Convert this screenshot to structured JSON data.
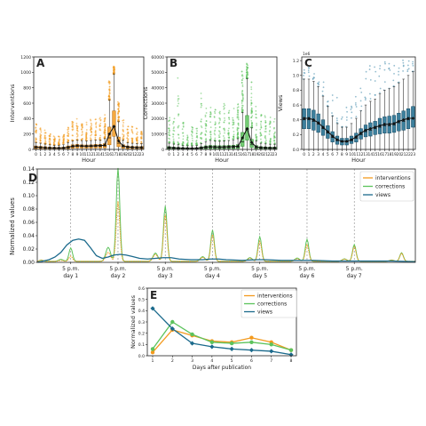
{
  "colors": {
    "interventions": "#f39a1e",
    "corrections": "#5cc35c",
    "views": "#1b6a8c",
    "axis": "#222222",
    "grid_dash": "#888888"
  },
  "chart_data": [
    {
      "panel": "A",
      "type": "box",
      "xlabel": "Hour",
      "ylabel": "Interventions",
      "categories": [
        "0",
        "1",
        "2",
        "3",
        "4",
        "5",
        "6",
        "7",
        "8",
        "9",
        "10",
        "11",
        "12",
        "13",
        "14",
        "15",
        "16",
        "17",
        "18",
        "19",
        "20",
        "21",
        "22",
        "23"
      ],
      "y_ticks": [
        "0",
        "200",
        "400",
        "600",
        "800",
        "1000",
        "1200"
      ],
      "ylim": [
        0,
        1200
      ],
      "median": [
        25,
        22,
        20,
        18,
        17,
        16,
        17,
        25,
        35,
        40,
        38,
        36,
        38,
        40,
        40,
        45,
        150,
        290,
        80,
        35,
        25,
        22,
        20,
        20
      ],
      "q1": [
        10,
        10,
        9,
        8,
        8,
        7,
        8,
        10,
        15,
        18,
        17,
        16,
        17,
        18,
        18,
        20,
        60,
        170,
        35,
        15,
        10,
        10,
        9,
        9
      ],
      "q3": [
        45,
        40,
        35,
        30,
        28,
        27,
        30,
        45,
        60,
        65,
        60,
        58,
        60,
        65,
        65,
        75,
        290,
        500,
        160,
        60,
        45,
        40,
        38,
        38
      ],
      "mean": [
        30,
        26,
        22,
        20,
        19,
        18,
        20,
        28,
        42,
        48,
        45,
        43,
        45,
        48,
        50,
        55,
        200,
        300,
        110,
        45,
        32,
        28,
        25,
        25
      ],
      "whisker_high": [
        90,
        80,
        70,
        60,
        55,
        55,
        60,
        90,
        110,
        120,
        115,
        110,
        115,
        120,
        120,
        140,
        640,
        980,
        360,
        120,
        90,
        80,
        75,
        75
      ],
      "flier_max": [
        360,
        300,
        250,
        200,
        180,
        170,
        200,
        300,
        380,
        400,
        390,
        380,
        390,
        400,
        420,
        450,
        900,
        1080,
        640,
        400,
        320,
        300,
        280,
        260
      ]
    },
    {
      "panel": "B",
      "type": "box",
      "xlabel": "Hour",
      "ylabel": "Corrections",
      "categories": [
        "0",
        "1",
        "2",
        "3",
        "4",
        "5",
        "6",
        "7",
        "8",
        "9",
        "10",
        "11",
        "12",
        "13",
        "14",
        "15",
        "16",
        "17",
        "18",
        "19",
        "20",
        "21",
        "22",
        "23"
      ],
      "y_ticks": [
        "0",
        "10000",
        "20000",
        "30000",
        "40000",
        "50000",
        "60000"
      ],
      "ylim": [
        0,
        60000
      ],
      "median": [
        800,
        700,
        600,
        500,
        500,
        450,
        500,
        700,
        1000,
        1200,
        1100,
        1050,
        1100,
        1200,
        1250,
        1400,
        5000,
        13000,
        3000,
        1100,
        800,
        700,
        650,
        650
      ],
      "q1": [
        300,
        250,
        200,
        200,
        180,
        170,
        200,
        300,
        400,
        500,
        450,
        430,
        450,
        500,
        520,
        600,
        2000,
        6000,
        1200,
        450,
        300,
        280,
        260,
        250
      ],
      "q3": [
        1800,
        1500,
        1300,
        1100,
        1000,
        950,
        1100,
        1700,
        2300,
        2600,
        2500,
        2400,
        2500,
        2600,
        2700,
        3100,
        11000,
        22000,
        6500,
        2500,
        1800,
        1600,
        1500,
        1500
      ],
      "mean": [
        1200,
        1000,
        900,
        800,
        750,
        700,
        800,
        1100,
        1500,
        1700,
        1600,
        1550,
        1600,
        1700,
        1800,
        2000,
        7500,
        13500,
        4500,
        1600,
        1200,
        1100,
        1000,
        1000
      ],
      "whisker_high": [
        4000,
        3500,
        3000,
        2600,
        2400,
        2300,
        2600,
        3800,
        5000,
        5800,
        5500,
        5300,
        5500,
        5800,
        6000,
        7000,
        24000,
        46000,
        14000,
        5600,
        4000,
        3600,
        3400,
        3400
      ],
      "flier_max": [
        22000,
        20000,
        48000,
        18000,
        12000,
        15000,
        14000,
        40000,
        30000,
        28000,
        26000,
        25000,
        35000,
        26000,
        27000,
        30000,
        52000,
        56000,
        45000,
        28000,
        25000,
        22000,
        21000,
        20000
      ]
    },
    {
      "panel": "C",
      "type": "box",
      "xlabel": "Hour",
      "ylabel": "Views",
      "scale_label": "1e6",
      "categories": [
        "0",
        "1",
        "2",
        "3",
        "4",
        "5",
        "6",
        "7",
        "8",
        "9",
        "10",
        "11",
        "12",
        "13",
        "14",
        "15",
        "16",
        "17",
        "18",
        "19",
        "20",
        "21",
        "22",
        "23"
      ],
      "y_ticks": [
        "0.0",
        "0.2",
        "0.4",
        "0.6",
        "0.8",
        "1.0",
        "1.2"
      ],
      "ylim": [
        0,
        1.25
      ],
      "median": [
        0.4,
        0.4,
        0.38,
        0.34,
        0.28,
        0.22,
        0.16,
        0.12,
        0.1,
        0.1,
        0.12,
        0.15,
        0.2,
        0.24,
        0.26,
        0.28,
        0.3,
        0.32,
        0.32,
        0.33,
        0.36,
        0.38,
        0.4,
        0.42
      ],
      "q1": [
        0.28,
        0.28,
        0.26,
        0.23,
        0.19,
        0.15,
        0.1,
        0.07,
        0.06,
        0.06,
        0.08,
        0.1,
        0.14,
        0.17,
        0.18,
        0.2,
        0.21,
        0.22,
        0.22,
        0.23,
        0.25,
        0.26,
        0.28,
        0.3
      ],
      "q3": [
        0.55,
        0.55,
        0.53,
        0.48,
        0.4,
        0.32,
        0.24,
        0.18,
        0.15,
        0.15,
        0.18,
        0.22,
        0.28,
        0.33,
        0.36,
        0.38,
        0.42,
        0.44,
        0.45,
        0.46,
        0.49,
        0.52,
        0.55,
        0.58
      ],
      "mean": [
        0.42,
        0.42,
        0.4,
        0.36,
        0.3,
        0.24,
        0.18,
        0.13,
        0.11,
        0.11,
        0.13,
        0.17,
        0.22,
        0.26,
        0.28,
        0.3,
        0.32,
        0.34,
        0.34,
        0.35,
        0.38,
        0.4,
        0.42,
        0.42
      ],
      "whisker_high": [
        0.95,
        0.95,
        0.92,
        0.85,
        0.72,
        0.58,
        0.45,
        0.35,
        0.3,
        0.3,
        0.35,
        0.42,
        0.52,
        0.6,
        0.65,
        0.68,
        0.75,
        0.8,
        0.82,
        0.85,
        0.9,
        0.95,
        1.0,
        1.05
      ],
      "flier_max": [
        1.2,
        1.2,
        1.15,
        1.1,
        1.05,
        0.95,
        0.8,
        0.7,
        0.6,
        0.6,
        0.7,
        0.85,
        1.0,
        1.1,
        1.15,
        1.2,
        1.22,
        1.2,
        1.2,
        1.2,
        1.2,
        1.22,
        1.22,
        1.2
      ]
    },
    {
      "panel": "D",
      "type": "line",
      "ylabel": "Normalized values",
      "y_ticks": [
        "0.00",
        "0.02",
        "0.04",
        "0.06",
        "0.08",
        "0.10",
        "0.12",
        "0.14"
      ],
      "ylim": [
        0,
        0.14
      ],
      "xlim_hours": [
        0,
        192
      ],
      "x_tick_hours": [
        17,
        41,
        65,
        89,
        113,
        137,
        161
      ],
      "x_tick_labels": [
        [
          "5 p.m.",
          "day 1"
        ],
        [
          "5 p.m.",
          "day 2"
        ],
        [
          "5 p.m.",
          "day 3"
        ],
        [
          "5 p.m.",
          "day 4"
        ],
        [
          "5 p.m.",
          "day 5"
        ],
        [
          "5 p.m.",
          "day 6"
        ],
        [
          "5 p.m.",
          "day 7"
        ]
      ],
      "legend_position": "top-right",
      "series": [
        {
          "name": "interventions",
          "peaks": [
            [
              2,
              0.002
            ],
            [
              17,
              0.008
            ],
            [
              41,
              0.09
            ],
            [
              65,
              0.07
            ],
            [
              89,
              0.04
            ],
            [
              113,
              0.03
            ],
            [
              137,
              0.025
            ],
            [
              161,
              0.022
            ],
            [
              185,
              0.012
            ]
          ]
        },
        {
          "name": "corrections",
          "peaks": [
            [
              2,
              0.002
            ],
            [
              17,
              0.02
            ],
            [
              41,
              0.14
            ],
            [
              65,
              0.083
            ],
            [
              89,
              0.047
            ],
            [
              113,
              0.037
            ],
            [
              137,
              0.033
            ],
            [
              161,
              0.025
            ],
            [
              185,
              0.013
            ]
          ]
        },
        {
          "name": "views",
          "points": [
            [
              0,
              0.0
            ],
            [
              3,
              0.002
            ],
            [
              6,
              0.004
            ],
            [
              9,
              0.008
            ],
            [
              12,
              0.015
            ],
            [
              15,
              0.026
            ],
            [
              18,
              0.033
            ],
            [
              21,
              0.035
            ],
            [
              24,
              0.033
            ],
            [
              27,
              0.022
            ],
            [
              30,
              0.01
            ],
            [
              33,
              0.006
            ],
            [
              36,
              0.008
            ],
            [
              39,
              0.011
            ],
            [
              42,
              0.012
            ],
            [
              45,
              0.011
            ],
            [
              48,
              0.009
            ],
            [
              52,
              0.006
            ],
            [
              56,
              0.005
            ],
            [
              60,
              0.006
            ],
            [
              64,
              0.007
            ],
            [
              68,
              0.007
            ],
            [
              72,
              0.005
            ],
            [
              78,
              0.004
            ],
            [
              84,
              0.004
            ],
            [
              88,
              0.005
            ],
            [
              92,
              0.005
            ],
            [
              96,
              0.004
            ],
            [
              104,
              0.003
            ],
            [
              112,
              0.004
            ],
            [
              116,
              0.004
            ],
            [
              124,
              0.003
            ],
            [
              136,
              0.003
            ],
            [
              140,
              0.003
            ],
            [
              150,
              0.002
            ],
            [
              160,
              0.002
            ],
            [
              170,
              0.002
            ],
            [
              180,
              0.002
            ],
            [
              192,
              0.001
            ]
          ]
        }
      ]
    },
    {
      "panel": "E",
      "type": "line",
      "xlabel": "Days after publication",
      "ylabel": "Normalized values",
      "x": [
        1,
        2,
        3,
        4,
        5,
        6,
        7,
        8
      ],
      "y_ticks": [
        "0.0",
        "0.1",
        "0.2",
        "0.3",
        "0.4",
        "0.5",
        "0.6"
      ],
      "ylim": [
        0,
        0.6
      ],
      "legend_position": "top-right",
      "series": [
        {
          "name": "interventions",
          "values": [
            0.03,
            0.23,
            0.18,
            0.13,
            0.12,
            0.16,
            0.12,
            0.05
          ],
          "marker": "circle"
        },
        {
          "name": "corrections",
          "values": [
            0.06,
            0.3,
            0.19,
            0.12,
            0.11,
            0.12,
            0.1,
            0.05
          ],
          "marker": "circle"
        },
        {
          "name": "views",
          "values": [
            0.42,
            0.24,
            0.11,
            0.08,
            0.06,
            0.05,
            0.04,
            0.01
          ],
          "marker": "diamond"
        }
      ]
    }
  ]
}
